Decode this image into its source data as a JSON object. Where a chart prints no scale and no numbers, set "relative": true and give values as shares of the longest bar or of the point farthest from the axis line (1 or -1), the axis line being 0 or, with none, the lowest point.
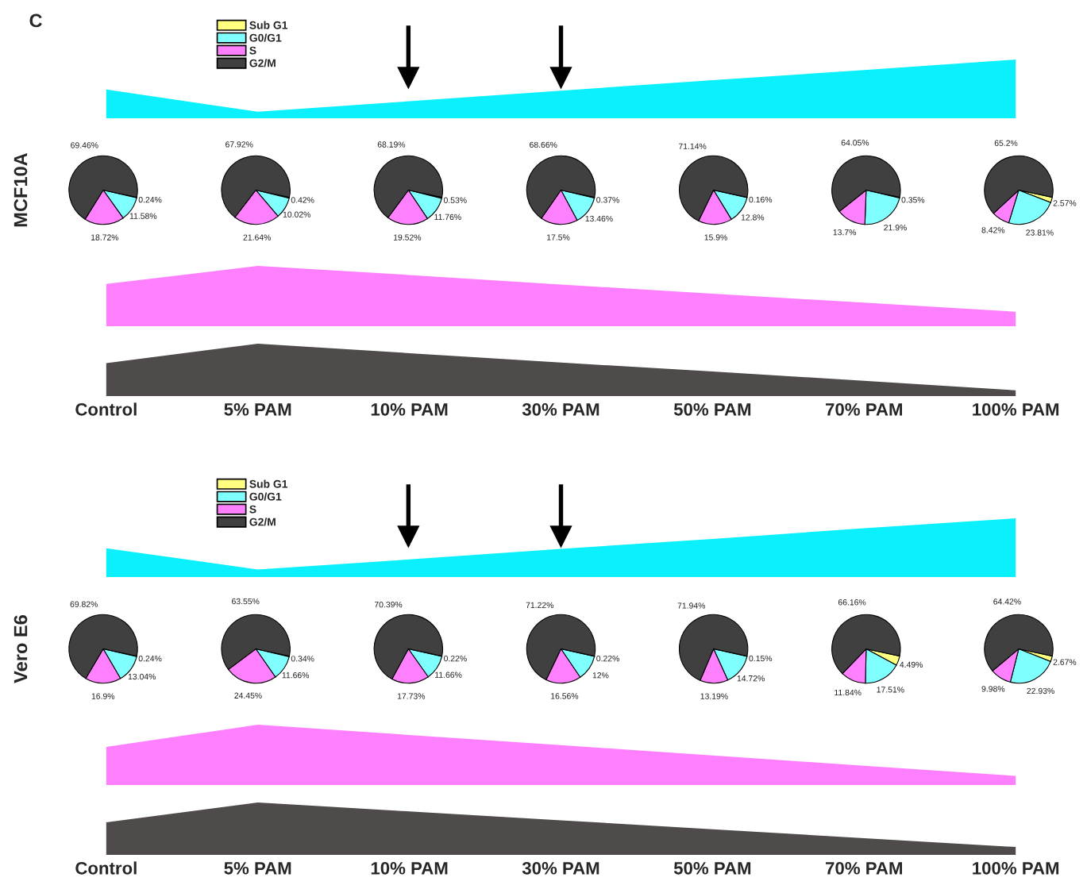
{
  "chart_data": [
    {
      "type": "area",
      "title": "C",
      "relative": true,
      "categories": [
        null,
        null,
        null,
        null,
        null,
        null,
        null
      ],
      "series": [
        {
          "color": "#0af0fc",
          "values": [
            0.49,
            0.11,
            0.29,
            0.47,
            0.65,
            0.82,
            1.0
          ]
        }
      ]
    },
    {
      "type": "pie",
      "ylabel": "MCF10A",
      "legend": "top",
      "categories": [
        "Sub G1",
        "G0/G1",
        "S",
        "G2/M"
      ],
      "values": [
        0.24,
        11.58,
        18.72,
        69.46
      ],
      "value_labels": [
        "0.24%",
        "11.58%",
        "18.72%",
        "69.46%"
      ],
      "colors": [
        "#ffff80",
        "#80ffff",
        "#ff80ff",
        "#404040"
      ]
    },
    {
      "type": "pie",
      "categories": [
        null,
        null,
        null,
        null
      ],
      "values": [
        0.42,
        10.02,
        21.64,
        67.92
      ],
      "value_labels": [
        "0.42%",
        "10.02%",
        "21.64%",
        "67.92%"
      ],
      "colors": [
        "#ffff80",
        "#80ffff",
        "#ff80ff",
        "#404040"
      ]
    },
    {
      "type": "pie",
      "categories": [
        null,
        null,
        null,
        null
      ],
      "values": [
        0.53,
        11.76,
        19.52,
        68.19
      ],
      "value_labels": [
        "0.53%",
        "11.76%",
        "19.52%",
        "68.19%"
      ],
      "colors": [
        "#ffff80",
        "#80ffff",
        "#ff80ff",
        "#404040"
      ]
    },
    {
      "type": "pie",
      "categories": [
        null,
        null,
        null,
        null
      ],
      "values": [
        0.37,
        13.46,
        17.5,
        68.66
      ],
      "value_labels": [
        "0.37%",
        "13.46%",
        "17.5%",
        "68.66%"
      ],
      "colors": [
        "#ffff80",
        "#80ffff",
        "#ff80ff",
        "#404040"
      ]
    },
    {
      "type": "pie",
      "categories": [
        null,
        null,
        null,
        null
      ],
      "values": [
        0.16,
        12.8,
        15.9,
        71.14
      ],
      "value_labels": [
        "0.16%",
        "12.8%",
        "15.9%",
        "71.14%"
      ],
      "colors": [
        "#ffff80",
        "#80ffff",
        "#ff80ff",
        "#404040"
      ]
    },
    {
      "type": "pie",
      "categories": [
        null,
        null,
        null,
        null
      ],
      "values": [
        0.35,
        21.9,
        13.7,
        64.05
      ],
      "value_labels": [
        "0.35%",
        "21.9%",
        "13.7%",
        "64.05%"
      ],
      "colors": [
        "#ffff80",
        "#80ffff",
        "#ff80ff",
        "#404040"
      ]
    },
    {
      "type": "pie",
      "categories": [
        null,
        null,
        null,
        null
      ],
      "values": [
        2.57,
        23.81,
        8.42,
        65.2
      ],
      "value_labels": [
        "2.57%",
        "23.81%",
        "8.42%",
        "65.2%"
      ],
      "colors": [
        "#ffff80",
        "#80ffff",
        "#ff80ff",
        "#404040"
      ]
    },
    {
      "type": "area",
      "relative": true,
      "categories": [
        null,
        null,
        null,
        null,
        null,
        null,
        null
      ],
      "series": [
        {
          "color": "#ff80ff",
          "values": [
            0.7,
            1.0,
            0.85,
            0.69,
            0.54,
            0.39,
            0.24
          ]
        }
      ]
    },
    {
      "type": "area",
      "relative": true,
      "categories": [
        "Control",
        "5% PAM",
        "10% PAM",
        "30% PAM",
        "50% PAM",
        "70% PAM",
        "100% PAM"
      ],
      "series": [
        {
          "color": "#4f4b4b",
          "values": [
            0.63,
            1.0,
            0.82,
            0.64,
            0.47,
            0.29,
            0.11
          ]
        }
      ]
    },
    {
      "type": "area",
      "relative": true,
      "categories": [
        null,
        null,
        null,
        null,
        null,
        null,
        null
      ],
      "series": [
        {
          "color": "#0af0fc",
          "values": [
            0.49,
            0.13,
            0.3,
            0.48,
            0.65,
            0.83,
            1.0
          ]
        }
      ]
    },
    {
      "type": "pie",
      "ylabel": "Vero E6",
      "legend": "top",
      "categories": [
        "Sub G1",
        "G0/G1",
        "S",
        "G2/M"
      ],
      "values": [
        0.24,
        13.04,
        16.9,
        69.82
      ],
      "value_labels": [
        "0.24%",
        "13.04%",
        "16.9%",
        "69.82%"
      ],
      "colors": [
        "#ffff80",
        "#80ffff",
        "#ff80ff",
        "#404040"
      ]
    },
    {
      "type": "pie",
      "categories": [
        null,
        null,
        null,
        null
      ],
      "values": [
        0.34,
        11.66,
        24.45,
        63.55
      ],
      "value_labels": [
        "0.34%",
        "11.66%",
        "24.45%",
        "63.55%"
      ],
      "colors": [
        "#ffff80",
        "#80ffff",
        "#ff80ff",
        "#404040"
      ]
    },
    {
      "type": "pie",
      "categories": [
        null,
        null,
        null,
        null
      ],
      "values": [
        0.22,
        11.66,
        17.73,
        70.39
      ],
      "value_labels": [
        "0.22%",
        "11.66%",
        "17.73%",
        "70.39%"
      ],
      "colors": [
        "#ffff80",
        "#80ffff",
        "#ff80ff",
        "#404040"
      ]
    },
    {
      "type": "pie",
      "categories": [
        null,
        null,
        null,
        null
      ],
      "values": [
        0.22,
        12,
        16.56,
        71.22
      ],
      "value_labels": [
        "0.22%",
        "12%",
        "16.56%",
        "71.22%"
      ],
      "colors": [
        "#ffff80",
        "#80ffff",
        "#ff80ff",
        "#404040"
      ]
    },
    {
      "type": "pie",
      "categories": [
        null,
        null,
        null,
        null
      ],
      "values": [
        0.15,
        14.72,
        13.19,
        71.94
      ],
      "value_labels": [
        "0.15%",
        "14.72%",
        "13.19%",
        "71.94%"
      ],
      "colors": [
        "#ffff80",
        "#80ffff",
        "#ff80ff",
        "#404040"
      ]
    },
    {
      "type": "pie",
      "categories": [
        null,
        null,
        null,
        null
      ],
      "values": [
        4.49,
        17.51,
        11.84,
        66.16
      ],
      "value_labels": [
        "4.49%",
        "17.51%",
        "11.84%",
        "66.16%"
      ],
      "colors": [
        "#ffff80",
        "#80ffff",
        "#ff80ff",
        "#404040"
      ]
    },
    {
      "type": "pie",
      "categories": [
        null,
        null,
        null,
        null
      ],
      "values": [
        2.67,
        22.93,
        9.98,
        64.42
      ],
      "value_labels": [
        "2.67%",
        "22.93%",
        "9.98%",
        "64.42%"
      ],
      "colors": [
        "#ffff80",
        "#80ffff",
        "#ff80ff",
        "#404040"
      ]
    },
    {
      "type": "area",
      "relative": true,
      "categories": [
        null,
        null,
        null,
        null,
        null,
        null,
        null
      ],
      "series": [
        {
          "color": "#ff80ff",
          "values": [
            0.63,
            1.0,
            0.83,
            0.66,
            0.49,
            0.32,
            0.15
          ]
        }
      ]
    },
    {
      "type": "area",
      "relative": true,
      "categories": [
        "Control",
        "5% PAM",
        "10% PAM",
        "30% PAM",
        "50% PAM",
        "70% PAM",
        "100% PAM"
      ],
      "series": [
        {
          "color": "#4f4b4b",
          "values": [
            0.62,
            1.0,
            0.83,
            0.66,
            0.49,
            0.32,
            0.15
          ]
        }
      ]
    }
  ]
}
